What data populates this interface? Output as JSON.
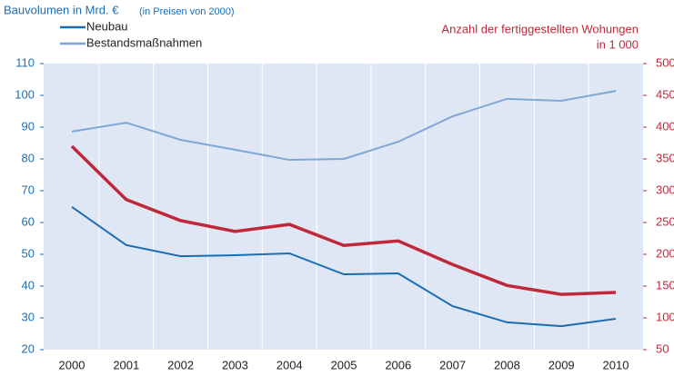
{
  "chart_data": {
    "type": "line",
    "title": "Bauvolumen in Mrd. €",
    "subtitle": "(in Preisen von 2000)",
    "y2_label": [
      "Anzahl der fertiggestellten Wohungen",
      "in 1 000"
    ],
    "categories": [
      "2000",
      "2001",
      "2002",
      "2003",
      "2004",
      "2005",
      "2006",
      "2007",
      "2008",
      "2009",
      "2010"
    ],
    "series": [
      {
        "name": "Neubau",
        "color": "#1b6db3",
        "values": [
          64.9,
          52.9,
          49.4,
          49.7,
          50.3,
          43.7,
          44,
          33.7,
          28.6,
          27.4,
          29.7
        ]
      },
      {
        "name": "Bestandsmaßnahmen",
        "color": "#7ea6d6",
        "values": [
          88.6,
          91.4,
          86,
          82.9,
          79.7,
          80,
          85.4,
          93.4,
          98.9,
          98.3,
          101.4
        ]
      },
      {
        "color": "#c0283a",
        "axis": "y2",
        "values": [
          370,
          286,
          253,
          236,
          247,
          214,
          221,
          184,
          151,
          137,
          140
        ]
      }
    ],
    "ylim": [
      20,
      110
    ],
    "yticks": [
      20,
      30,
      40,
      50,
      60,
      70,
      80,
      90,
      100,
      110
    ],
    "y2lim": [
      50,
      500
    ],
    "y2ticks": [
      50,
      100,
      150,
      200,
      250,
      300,
      350,
      400,
      450,
      500
    ],
    "grid": true
  }
}
